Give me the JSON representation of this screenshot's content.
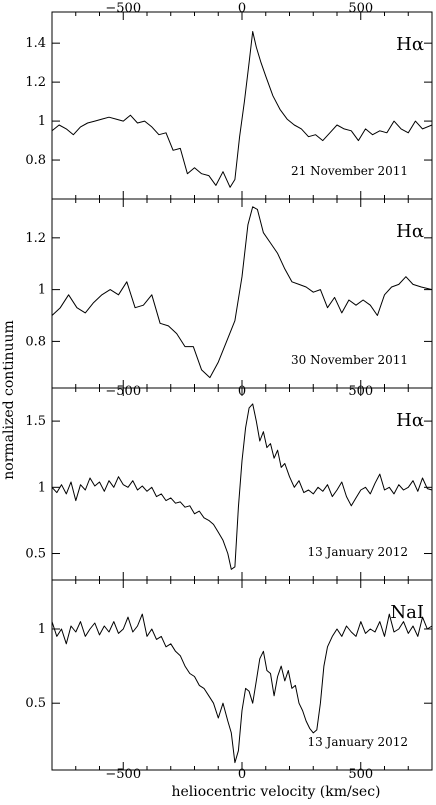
{
  "chart_data": {
    "type": "line",
    "xlabel": "heliocentric velocity (km/sec)",
    "ylabel": "normalized continuum",
    "xlim": [
      -800,
      800
    ],
    "top_axis_tick_labels": [
      "−500",
      "0",
      "500"
    ],
    "bottom_axis_tick_labels": [
      "−500",
      "0",
      "500"
    ],
    "panels": [
      {
        "line_label": "Hα",
        "date": "21 November 2011",
        "ylim": [
          0.6,
          1.56
        ],
        "yticks": [
          0.8,
          1,
          1.2,
          1.4
        ],
        "ytick_labels": [
          "0.8",
          "1",
          "1.2",
          "1.4"
        ],
        "x": [
          -800,
          -770,
          -740,
          -710,
          -680,
          -650,
          -620,
          -590,
          -560,
          -530,
          -500,
          -470,
          -440,
          -410,
          -380,
          -350,
          -320,
          -290,
          -260,
          -230,
          -200,
          -170,
          -140,
          -110,
          -80,
          -50,
          -30,
          -10,
          10,
          30,
          45,
          60,
          80,
          100,
          130,
          160,
          190,
          220,
          250,
          280,
          310,
          340,
          370,
          400,
          430,
          460,
          490,
          520,
          550,
          580,
          610,
          640,
          670,
          700,
          730,
          760,
          800
        ],
        "y": [
          0.95,
          0.98,
          0.96,
          0.93,
          0.97,
          0.99,
          1.0,
          1.01,
          1.02,
          1.01,
          1.0,
          1.03,
          0.99,
          1.0,
          0.97,
          0.93,
          0.94,
          0.85,
          0.86,
          0.73,
          0.76,
          0.73,
          0.72,
          0.67,
          0.74,
          0.66,
          0.7,
          0.92,
          1.1,
          1.3,
          1.46,
          1.38,
          1.3,
          1.23,
          1.13,
          1.06,
          1.01,
          0.98,
          0.96,
          0.92,
          0.93,
          0.9,
          0.94,
          0.98,
          0.96,
          0.95,
          0.9,
          0.96,
          0.93,
          0.95,
          0.94,
          1.0,
          0.96,
          0.94,
          1.0,
          0.96,
          0.98
        ]
      },
      {
        "line_label": "Hα",
        "date": "30 November 2011",
        "ylim": [
          0.62,
          1.35
        ],
        "yticks": [
          0.8,
          1,
          1.2
        ],
        "ytick_labels": [
          "0.8",
          "1",
          "1.2"
        ],
        "x": [
          -800,
          -765,
          -730,
          -695,
          -660,
          -625,
          -590,
          -555,
          -520,
          -485,
          -450,
          -415,
          -380,
          -345,
          -310,
          -275,
          -240,
          -205,
          -170,
          -135,
          -100,
          -65,
          -30,
          0,
          25,
          45,
          65,
          90,
          120,
          150,
          180,
          210,
          240,
          270,
          300,
          330,
          360,
          390,
          420,
          450,
          480,
          510,
          540,
          570,
          600,
          630,
          660,
          690,
          720,
          755,
          800
        ],
        "y": [
          0.9,
          0.93,
          0.98,
          0.93,
          0.91,
          0.95,
          0.98,
          1.0,
          0.98,
          1.03,
          0.93,
          0.94,
          0.98,
          0.87,
          0.86,
          0.83,
          0.78,
          0.78,
          0.69,
          0.66,
          0.72,
          0.8,
          0.88,
          1.05,
          1.25,
          1.32,
          1.31,
          1.22,
          1.18,
          1.14,
          1.08,
          1.03,
          1.02,
          1.01,
          0.99,
          1.0,
          0.93,
          0.97,
          0.91,
          0.96,
          0.94,
          0.96,
          0.94,
          0.9,
          0.98,
          1.01,
          1.02,
          1.05,
          1.02,
          1.01,
          1.0
        ]
      },
      {
        "line_label": "Hα",
        "date": "13 January 2012",
        "ylim": [
          0.3,
          1.75
        ],
        "yticks": [
          0.5,
          1,
          1.5
        ],
        "ytick_labels": [
          "0.5",
          "1",
          "1.5"
        ],
        "x": [
          -800,
          -780,
          -760,
          -740,
          -720,
          -700,
          -680,
          -660,
          -640,
          -620,
          -600,
          -580,
          -560,
          -540,
          -520,
          -500,
          -480,
          -460,
          -440,
          -420,
          -400,
          -380,
          -360,
          -340,
          -320,
          -300,
          -280,
          -260,
          -240,
          -220,
          -200,
          -180,
          -160,
          -140,
          -120,
          -100,
          -80,
          -60,
          -45,
          -30,
          -15,
          0,
          15,
          30,
          45,
          60,
          75,
          90,
          105,
          120,
          135,
          150,
          165,
          180,
          200,
          220,
          240,
          260,
          280,
          300,
          320,
          340,
          360,
          380,
          400,
          420,
          440,
          460,
          480,
          500,
          520,
          540,
          560,
          580,
          600,
          620,
          640,
          660,
          680,
          700,
          720,
          740,
          760,
          780,
          800
        ],
        "y": [
          1.0,
          0.96,
          1.02,
          0.95,
          1.04,
          0.9,
          1.02,
          0.98,
          1.07,
          1.01,
          1.04,
          0.97,
          1.05,
          1.0,
          1.08,
          1.02,
          1.0,
          1.05,
          0.98,
          1.01,
          0.97,
          1.0,
          0.93,
          0.95,
          0.9,
          0.92,
          0.88,
          0.89,
          0.85,
          0.86,
          0.8,
          0.82,
          0.77,
          0.75,
          0.72,
          0.66,
          0.6,
          0.5,
          0.38,
          0.4,
          0.85,
          1.2,
          1.45,
          1.6,
          1.63,
          1.5,
          1.35,
          1.42,
          1.3,
          1.33,
          1.22,
          1.28,
          1.15,
          1.18,
          1.08,
          1.0,
          1.05,
          0.96,
          0.98,
          0.95,
          1.0,
          0.97,
          1.02,
          0.93,
          0.98,
          1.04,
          0.93,
          0.86,
          0.92,
          0.98,
          1.0,
          0.95,
          1.03,
          1.1,
          0.98,
          1.0,
          0.95,
          1.02,
          0.98,
          1.0,
          1.05,
          0.97,
          1.07,
          0.99,
          0.98
        ]
      },
      {
        "line_label": "NaI",
        "date": "13 January 2012",
        "ylim": [
          0.05,
          1.33
        ],
        "yticks": [
          0.5,
          1
        ],
        "ytick_labels": [
          "0.5",
          "1"
        ],
        "x": [
          -800,
          -780,
          -760,
          -740,
          -720,
          -700,
          -680,
          -660,
          -640,
          -620,
          -600,
          -580,
          -560,
          -540,
          -520,
          -500,
          -480,
          -460,
          -440,
          -420,
          -400,
          -380,
          -360,
          -340,
          -320,
          -300,
          -280,
          -260,
          -240,
          -220,
          -200,
          -180,
          -160,
          -140,
          -120,
          -100,
          -80,
          -60,
          -45,
          -30,
          -15,
          0,
          15,
          30,
          45,
          60,
          75,
          90,
          105,
          120,
          135,
          150,
          165,
          180,
          195,
          210,
          225,
          240,
          255,
          270,
          285,
          300,
          315,
          330,
          345,
          360,
          380,
          400,
          420,
          440,
          460,
          480,
          500,
          520,
          540,
          560,
          580,
          600,
          620,
          640,
          660,
          680,
          700,
          720,
          740,
          760,
          780,
          800
        ],
        "y": [
          1.05,
          0.95,
          1.0,
          0.9,
          1.02,
          0.98,
          1.05,
          0.95,
          1.0,
          1.04,
          0.96,
          1.02,
          0.98,
          1.05,
          0.97,
          1.0,
          1.08,
          0.98,
          1.02,
          1.1,
          0.95,
          1.0,
          0.93,
          0.95,
          0.88,
          0.9,
          0.85,
          0.82,
          0.75,
          0.7,
          0.68,
          0.62,
          0.6,
          0.55,
          0.5,
          0.4,
          0.5,
          0.38,
          0.3,
          0.1,
          0.18,
          0.45,
          0.6,
          0.58,
          0.5,
          0.65,
          0.8,
          0.85,
          0.72,
          0.7,
          0.55,
          0.68,
          0.75,
          0.65,
          0.72,
          0.6,
          0.62,
          0.5,
          0.45,
          0.38,
          0.33,
          0.3,
          0.32,
          0.5,
          0.75,
          0.88,
          0.95,
          1.0,
          0.95,
          1.02,
          0.98,
          0.95,
          1.05,
          0.97,
          1.0,
          0.98,
          1.05,
          0.95,
          1.1,
          0.98,
          1.0,
          1.05,
          0.97,
          1.02,
          0.95,
          1.08,
          1.0,
          1.02
        ]
      }
    ]
  }
}
